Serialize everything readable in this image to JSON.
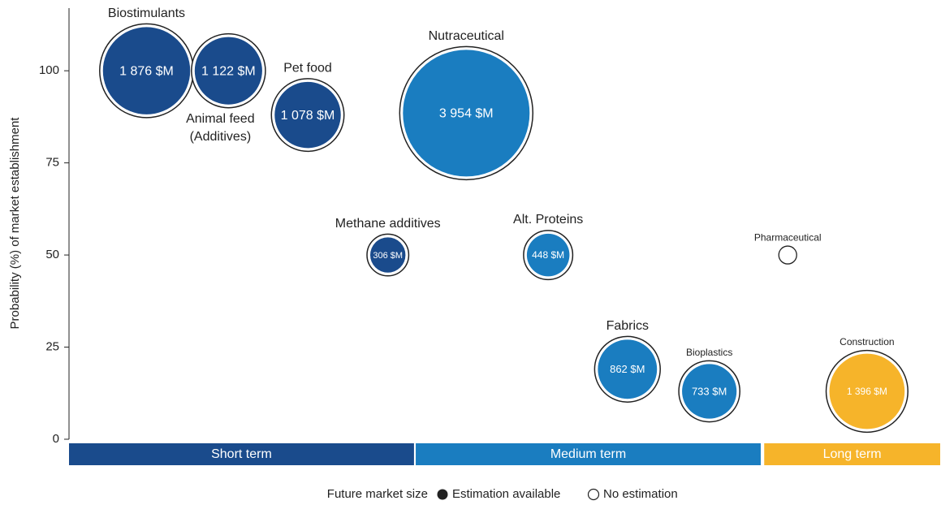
{
  "chart_data": {
    "type": "bubble",
    "y_label": "Probability (%) of market establishment",
    "ylim": [
      0,
      117
    ],
    "yticks": [
      0,
      25,
      50,
      75,
      100
    ],
    "xlim": [
      0,
      100
    ],
    "points": [
      {
        "name": [
          "Biostimulants"
        ],
        "x": 8.9,
        "y": 100,
        "size": 1876,
        "size_label": "1 876 $M",
        "color": "#1a4b8c"
      },
      {
        "name": [
          "Animal feed",
          "(Additives)"
        ],
        "x": 18.3,
        "y": 100,
        "size": 1122,
        "size_label": "1 122 $M",
        "color": "#1a4b8c"
      },
      {
        "name": [
          "Pet food"
        ],
        "x": 27.4,
        "y": 88,
        "size": 1078,
        "size_label": "1 078 $M",
        "color": "#1a4b8c"
      },
      {
        "name": [
          "Nutraceutical"
        ],
        "x": 45.6,
        "y": 88.5,
        "size": 3954,
        "size_label": "3 954 $M",
        "color": "#1a7dc0"
      },
      {
        "name": [
          "Methane additives"
        ],
        "x": 36.6,
        "y": 50,
        "size": 306,
        "size_label": "306 $M",
        "color": "#1a4b8c"
      },
      {
        "name": [
          "Alt. Proteins"
        ],
        "x": 55.0,
        "y": 50,
        "size": 448,
        "size_label": "448 $M",
        "color": "#1a7dc0"
      },
      {
        "name": [
          "Pharmaceutical"
        ],
        "x": 82.5,
        "y": 50,
        "size": null,
        "size_label": null,
        "color": null
      },
      {
        "name": [
          "Fabrics"
        ],
        "x": 64.1,
        "y": 19,
        "size": 862,
        "size_label": "862 $M",
        "color": "#1a7dc0"
      },
      {
        "name": [
          "Bioplastics"
        ],
        "x": 73.5,
        "y": 13,
        "size": 733,
        "size_label": "733 $M",
        "color": "#1a7dc0"
      },
      {
        "name": [
          "Construction"
        ],
        "x": 91.6,
        "y": 13,
        "size": 1396,
        "size_label": "1 396 $M",
        "color": "#f6b42a"
      }
    ],
    "phases": [
      {
        "name": "Short term",
        "range": [
          0,
          39.6
        ],
        "color": "#1a4b8c"
      },
      {
        "name": "Medium term",
        "range": [
          39.8,
          79.4
        ],
        "color": "#1a7dc0"
      },
      {
        "name": "Long term",
        "range": [
          79.8,
          100
        ],
        "color": "#f6b42a"
      }
    ],
    "legend": {
      "title": "Future market size",
      "items": [
        "Estimation available",
        "No estimation"
      ]
    }
  }
}
